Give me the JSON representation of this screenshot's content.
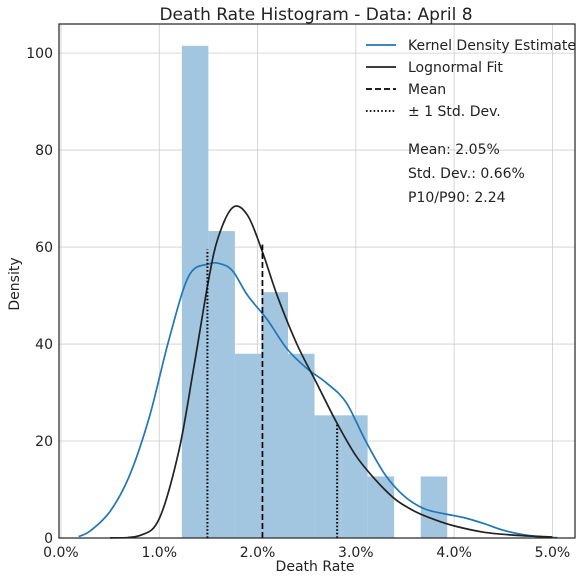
{
  "chart_data": {
    "type": "histogram",
    "title": "Death Rate Histogram - Data: April 8",
    "xlabel": "Death Rate",
    "ylabel": "Density",
    "xlim": [
      -0.0002,
      0.0523
    ],
    "ylim": [
      0,
      106
    ],
    "grid": true,
    "x_ticks": [
      0.0,
      0.01,
      0.02,
      0.03,
      0.04,
      0.05
    ],
    "x_tick_labels": [
      "0.0%",
      "1.0%",
      "2.0%",
      "3.0%",
      "4.0%",
      "5.0%"
    ],
    "y_ticks": [
      0,
      20,
      40,
      60,
      80,
      100
    ],
    "y_tick_labels": [
      "0",
      "20",
      "40",
      "60",
      "80",
      "100"
    ],
    "bar_color": "#a3c6e0",
    "bins": [
      {
        "x0": 0.0123,
        "x1": 0.015,
        "density": 101.5
      },
      {
        "x0": 0.015,
        "x1": 0.0177,
        "density": 63.3
      },
      {
        "x0": 0.0177,
        "x1": 0.0204,
        "density": 38.0
      },
      {
        "x0": 0.0204,
        "x1": 0.0231,
        "density": 50.7
      },
      {
        "x0": 0.0231,
        "x1": 0.0258,
        "density": 38.0
      },
      {
        "x0": 0.0258,
        "x1": 0.0285,
        "density": 25.3
      },
      {
        "x0": 0.0285,
        "x1": 0.0312,
        "density": 25.3
      },
      {
        "x0": 0.0312,
        "x1": 0.0339,
        "density": 12.7
      },
      {
        "x0": 0.0339,
        "x1": 0.0366,
        "density": 0
      },
      {
        "x0": 0.0366,
        "x1": 0.0393,
        "density": 12.7
      }
    ],
    "series": [
      {
        "name": "Kernel Density Estimate",
        "color": "#1f77b4",
        "style": "solid",
        "x": [
          0.0018,
          0.003,
          0.005,
          0.007,
          0.009,
          0.011,
          0.013,
          0.015,
          0.0163,
          0.0175,
          0.019,
          0.021,
          0.023,
          0.025,
          0.027,
          0.029,
          0.031,
          0.033,
          0.035,
          0.037,
          0.039,
          0.041,
          0.043,
          0.045,
          0.047,
          0.049,
          0.0505
        ],
        "y": [
          0.3,
          1.5,
          5.5,
          13,
          25,
          41,
          54,
          56.5,
          56.5,
          55,
          50,
          45,
          39,
          35,
          32,
          28,
          20,
          13,
          8.5,
          6,
          5,
          4.2,
          3,
          1.6,
          0.7,
          0.2,
          0.05
        ]
      },
      {
        "name": "Lognormal Fit",
        "color": "#222222",
        "style": "solid",
        "x": [
          0.005,
          0.008,
          0.01,
          0.012,
          0.0135,
          0.015,
          0.016,
          0.0175,
          0.019,
          0.0205,
          0.022,
          0.024,
          0.026,
          0.028,
          0.03,
          0.032,
          0.034,
          0.036,
          0.038,
          0.04,
          0.043,
          0.046,
          0.049,
          0.05
        ],
        "y": [
          0.02,
          0.5,
          4,
          18,
          35,
          53,
          62,
          68.2,
          66.5,
          59,
          50,
          40,
          32,
          24,
          17,
          12,
          8,
          5.5,
          3.8,
          2.5,
          1.2,
          0.6,
          0.3,
          0.2
        ]
      }
    ],
    "vlines": [
      {
        "name": "Mean",
        "x": 0.0205,
        "y_top": 60.5,
        "style": "dashed",
        "color": "#000000"
      },
      {
        "name": "± 1 Std. Dev.",
        "x": 0.0149,
        "y_top": 59.5,
        "style": "dotted",
        "color": "#000000"
      },
      {
        "name": "± 1 Std. Dev.",
        "x": 0.0281,
        "y_top": 23.5,
        "style": "dotted",
        "color": "#000000"
      }
    ],
    "legend": {
      "placement": "top-right",
      "entries": [
        {
          "label": "Kernel Density Estimate",
          "style": "solid",
          "color": "#1f77b4"
        },
        {
          "label": "Lognormal Fit",
          "style": "solid",
          "color": "#222222"
        },
        {
          "label": "Mean",
          "style": "dashed",
          "color": "#000000"
        },
        {
          "label": "± 1 Std. Dev.",
          "style": "dotted",
          "color": "#000000"
        }
      ]
    },
    "annotations": [
      "Mean: 2.05%",
      "Std. Dev.: 0.66%",
      "P10/P90: 2.24"
    ]
  }
}
